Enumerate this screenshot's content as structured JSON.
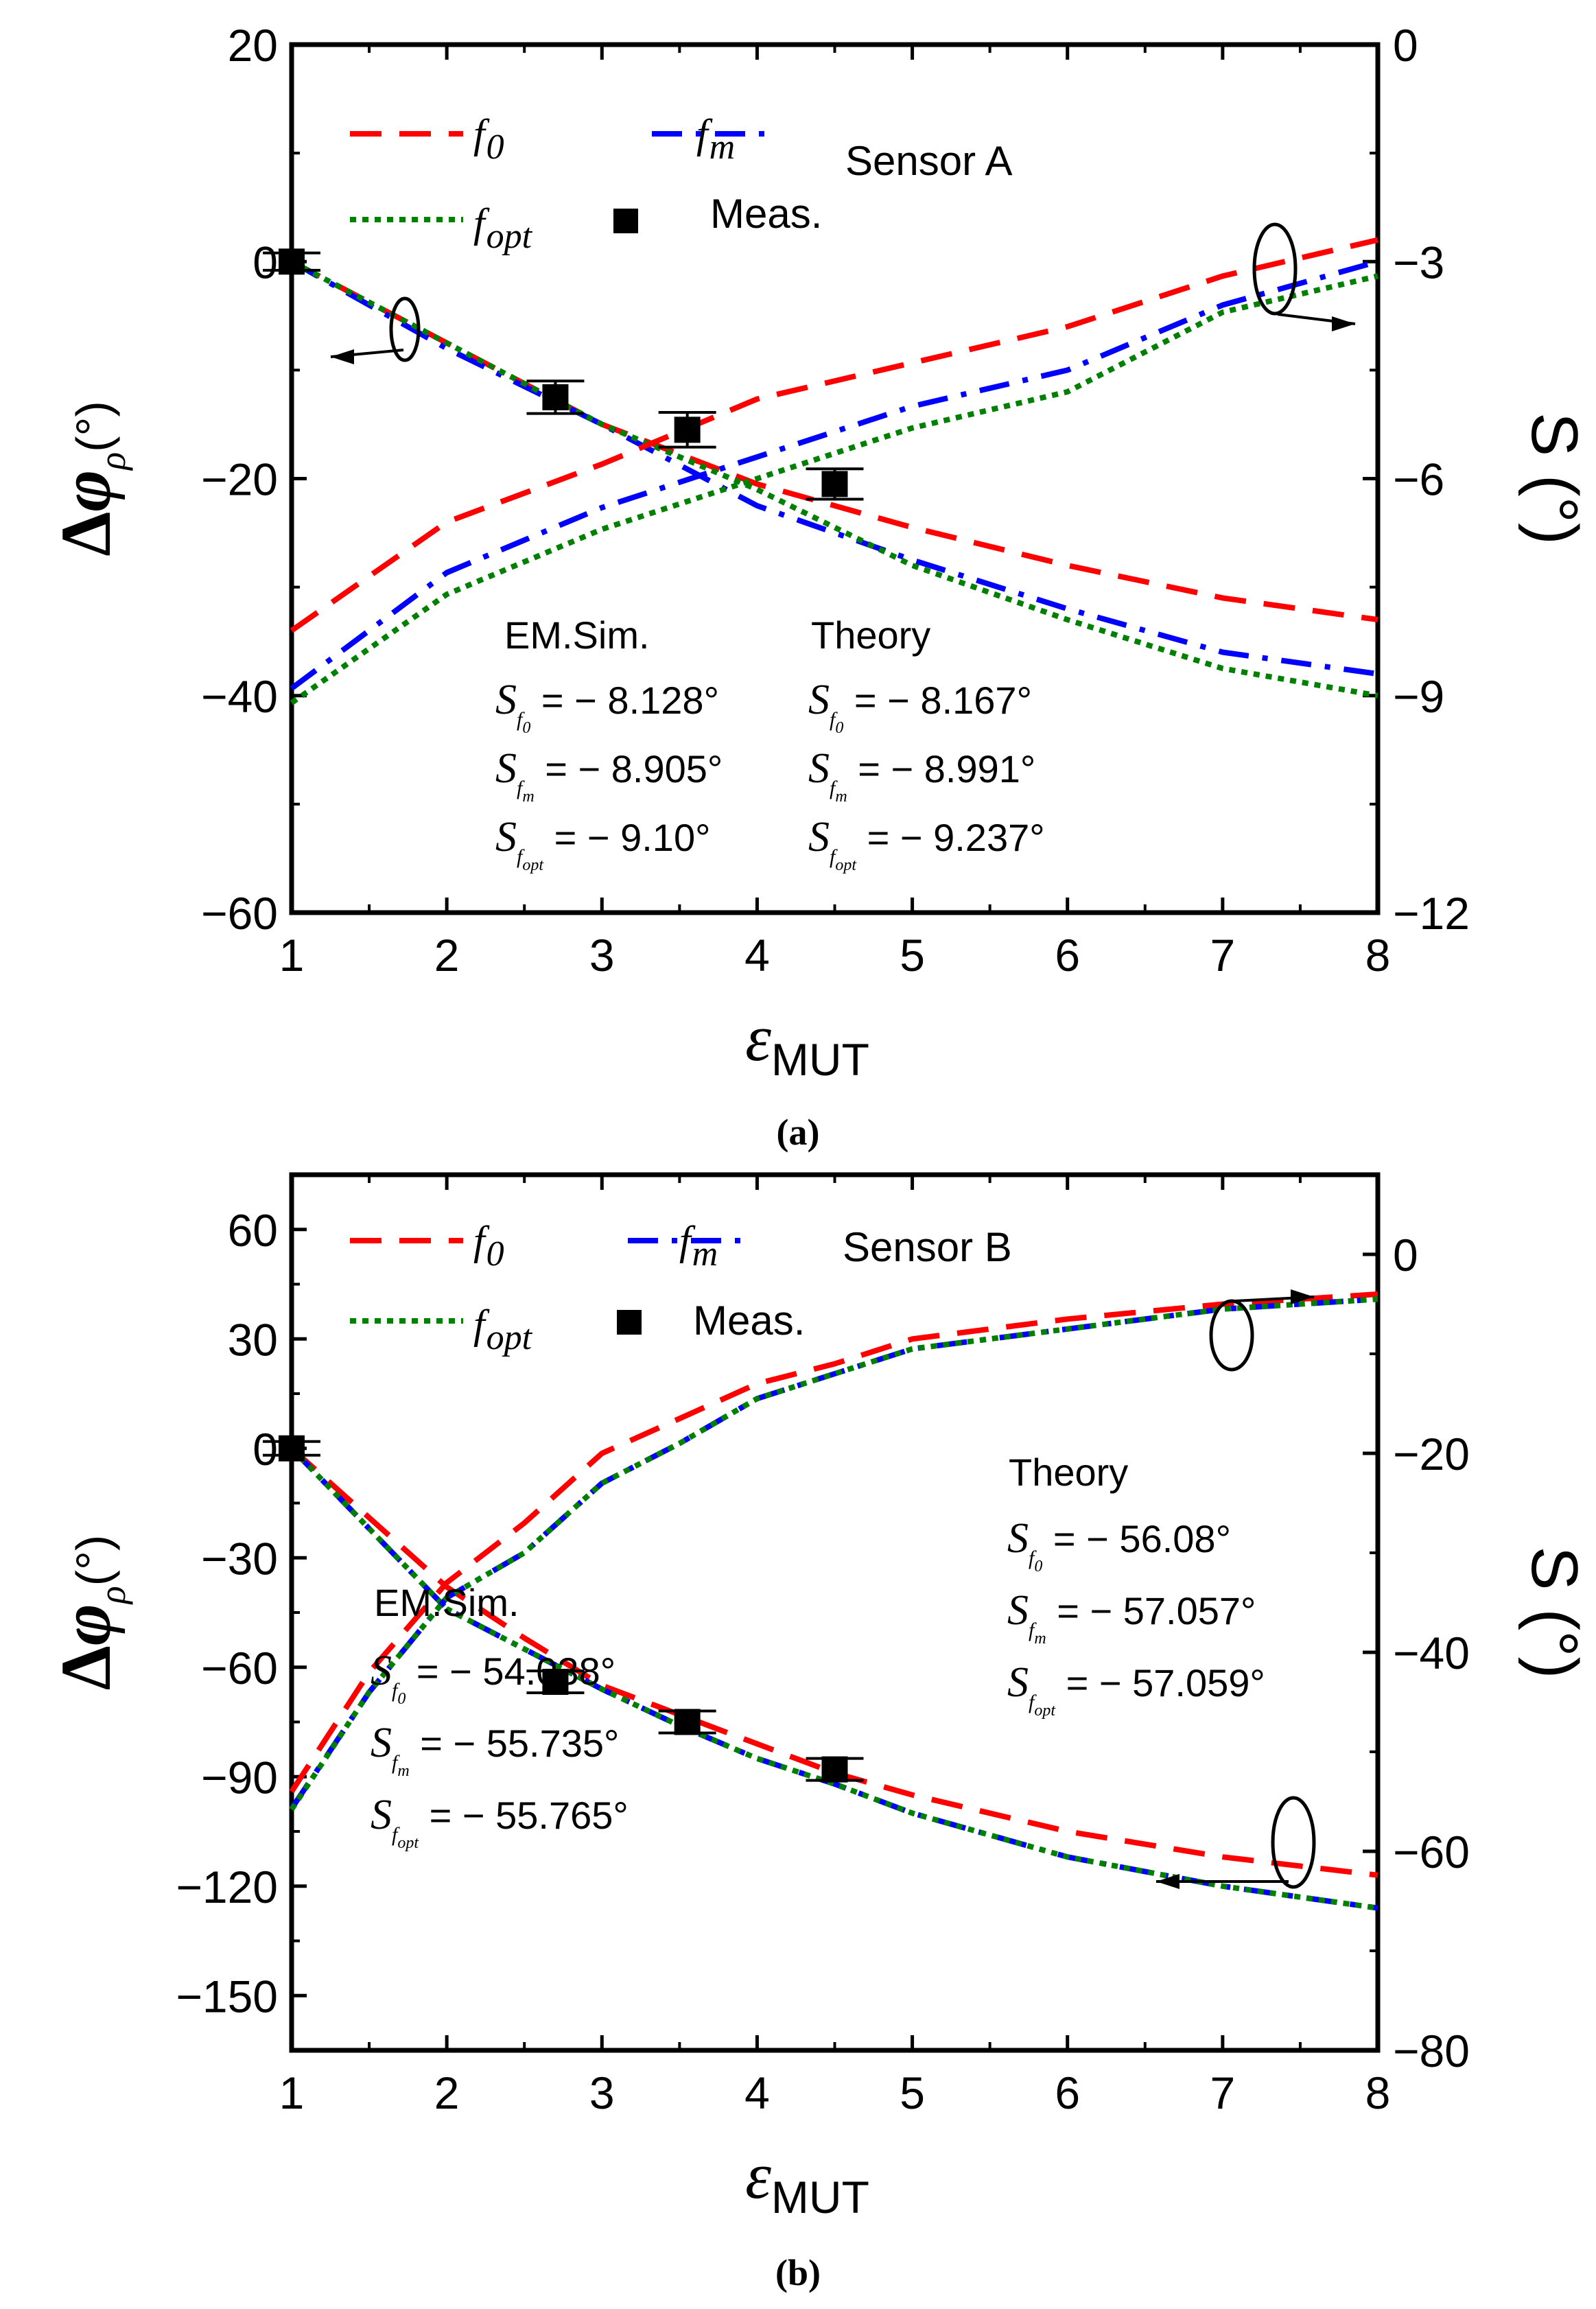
{
  "chart_data": [
    {
      "type": "line",
      "panel": "a",
      "caption": "(a)",
      "title": "Sensor A",
      "xlabel_main": "ε",
      "xlabel_sub": "MUT",
      "ylabel_left_main": "Δφ",
      "ylabel_left_sub": "ρ",
      "ylabel_left_unit": "(°)",
      "ylabel_right": "S (°)",
      "xlim": [
        1,
        8
      ],
      "ylim_left": [
        -60,
        20
      ],
      "ylim_right": [
        -12,
        0
      ],
      "xticks": [
        "1",
        "2",
        "3",
        "4",
        "5",
        "6",
        "7",
        "8"
      ],
      "yticks_left": [
        "20",
        "0",
        "−20",
        "−40",
        "−60"
      ],
      "yticks_right": [
        "0",
        "−3",
        "−6",
        "−9",
        "−12"
      ],
      "legend": [
        {
          "main": "f",
          "sub": "0",
          "color": "#ff0000",
          "style": "dash"
        },
        {
          "main": "f",
          "sub": "m",
          "color": "#0000ff",
          "style": "dashdot"
        },
        {
          "main": "f",
          "sub": "opt",
          "color": "#008000",
          "style": "dot"
        },
        {
          "label": "Meas.",
          "color": "#000000",
          "style": "marker"
        }
      ],
      "series": [
        {
          "name": "f0 Δφ",
          "axis": "left",
          "color": "#ff0000",
          "style": "dash",
          "x": [
            1,
            2,
            3,
            4,
            5,
            6,
            7,
            8
          ],
          "values": [
            0,
            -7.5,
            -15,
            -20.5,
            -24.5,
            -28,
            -31,
            -33
          ]
        },
        {
          "name": "fm Δφ",
          "axis": "left",
          "color": "#0000ff",
          "style": "dashdot",
          "x": [
            1,
            2,
            3,
            4,
            5,
            6,
            7,
            8
          ],
          "values": [
            0,
            -8,
            -15,
            -22.5,
            -27.5,
            -32,
            -36,
            -38
          ]
        },
        {
          "name": "fopt Δφ",
          "axis": "left",
          "color": "#008000",
          "style": "dot",
          "x": [
            1,
            2,
            3,
            4,
            5,
            6,
            7,
            8
          ],
          "values": [
            0,
            -7.5,
            -15,
            -21,
            -28,
            -33,
            -37.5,
            -40
          ]
        },
        {
          "name": "f0 S",
          "axis": "right",
          "color": "#ff0000",
          "style": "dash",
          "x": [
            1,
            2,
            3,
            4,
            5,
            6,
            7,
            8
          ],
          "values": [
            -8.1,
            -6.6,
            -5.8,
            -4.9,
            -4.4,
            -3.9,
            -3.2,
            -2.7
          ]
        },
        {
          "name": "fm S",
          "axis": "right",
          "color": "#0000ff",
          "style": "dashdot",
          "x": [
            1,
            2,
            3,
            4,
            5,
            6,
            7,
            8
          ],
          "values": [
            -8.9,
            -7.3,
            -6.4,
            -5.7,
            -5.0,
            -4.5,
            -3.6,
            -3.0
          ]
        },
        {
          "name": "fopt S",
          "axis": "right",
          "color": "#008000",
          "style": "dot",
          "x": [
            1,
            2,
            3,
            4,
            5,
            6,
            7,
            8
          ],
          "values": [
            -9.1,
            -7.6,
            -6.7,
            -6.0,
            -5.3,
            -4.8,
            -3.7,
            -3.2
          ]
        }
      ],
      "measured": {
        "x": [
          1,
          2.7,
          3.55,
          4.5
        ],
        "values": [
          0,
          -12.5,
          -15.5,
          -20.5
        ],
        "err": [
          0.8,
          1.5,
          1.6,
          1.4
        ]
      },
      "annotations": {
        "sim_header": "EM.Sim.",
        "theory_header": "Theory",
        "sim": [
          {
            "sub": "f0",
            "text": " = − 8.128°"
          },
          {
            "sub": "fm",
            "text": " = − 8.905°"
          },
          {
            "sub": "fopt",
            "text": " = − 9.10°"
          }
        ],
        "theory": [
          {
            "sub": "f0",
            "text": " = − 8.167°"
          },
          {
            "sub": "fm",
            "text": " = − 8.991°"
          },
          {
            "sub": "fopt",
            "text": " = − 9.237°"
          }
        ]
      }
    },
    {
      "type": "line",
      "panel": "b",
      "caption": "(b)",
      "title": "Sensor B",
      "xlabel_main": "ε",
      "xlabel_sub": "MUT",
      "ylabel_left_main": "Δφ",
      "ylabel_left_sub": "ρ",
      "ylabel_left_unit": "(°)",
      "ylabel_right": "S (°)",
      "xlim": [
        1,
        8
      ],
      "ylim_left": [
        -165,
        75
      ],
      "ylim_right": [
        -80,
        8
      ],
      "xticks": [
        "1",
        "2",
        "3",
        "4",
        "5",
        "6",
        "7",
        "8"
      ],
      "yticks_left": [
        "60",
        "30",
        "0",
        "−30",
        "−60",
        "−90",
        "−120",
        "−150"
      ],
      "yticks_right": [
        "0",
        "−20",
        "−40",
        "−60",
        "−80"
      ],
      "legend": [
        {
          "main": "f",
          "sub": "0",
          "color": "#ff0000",
          "style": "dash"
        },
        {
          "main": "f",
          "sub": "m",
          "color": "#0000ff",
          "style": "dashdot"
        },
        {
          "main": "f",
          "sub": "opt",
          "color": "#008000",
          "style": "dot"
        },
        {
          "label": "Meas.",
          "color": "#000000",
          "style": "marker"
        }
      ],
      "series": [
        {
          "name": "f0 Δφ",
          "axis": "left",
          "color": "#ff0000",
          "style": "dash",
          "x": [
            1,
            2,
            2.5,
            3,
            3.5,
            4,
            4.5,
            5,
            6,
            7,
            8
          ],
          "values": [
            0,
            -38,
            -52,
            -65,
            -73,
            -81,
            -89,
            -95,
            -105,
            -112,
            -117
          ]
        },
        {
          "name": "fm Δφ",
          "axis": "left",
          "color": "#0000ff",
          "style": "dashdot",
          "x": [
            1,
            2,
            2.5,
            3,
            3.5,
            4,
            4.5,
            5,
            6,
            7,
            8
          ],
          "values": [
            0,
            -44,
            -55,
            -66,
            -76,
            -85,
            -92,
            -100,
            -112,
            -120,
            -126
          ]
        },
        {
          "name": "fopt Δφ",
          "axis": "left",
          "color": "#008000",
          "style": "dot",
          "x": [
            1,
            2,
            2.5,
            3,
            3.5,
            4,
            4.5,
            5,
            6,
            7,
            8
          ],
          "values": [
            0,
            -44,
            -55,
            -66,
            -76,
            -85,
            -92,
            -100,
            -112,
            -120,
            -126
          ]
        },
        {
          "name": "f0 S",
          "axis": "right",
          "color": "#ff0000",
          "style": "dash",
          "x": [
            1,
            1.5,
            2,
            2.5,
            3,
            3.5,
            4,
            4.5,
            5,
            6,
            7,
            8
          ],
          "values": [
            -54,
            -42,
            -33,
            -27,
            -20,
            -16.5,
            -13,
            -11,
            -8.5,
            -6.5,
            -5,
            -4
          ]
        },
        {
          "name": "fm S",
          "axis": "right",
          "color": "#0000ff",
          "style": "dashdot",
          "x": [
            1,
            1.5,
            2,
            2.5,
            3,
            3.5,
            4,
            4.5,
            5,
            6,
            7,
            8
          ],
          "values": [
            -55.7,
            -44,
            -34.5,
            -30,
            -23,
            -19,
            -14.5,
            -12,
            -9.5,
            -7.5,
            -5.5,
            -4.5
          ]
        },
        {
          "name": "fopt S",
          "axis": "right",
          "color": "#008000",
          "style": "dot",
          "x": [
            1,
            1.5,
            2,
            2.5,
            3,
            3.5,
            4,
            4.5,
            5,
            6,
            7,
            8
          ],
          "values": [
            -55.8,
            -44,
            -34.5,
            -30,
            -23,
            -19,
            -14.5,
            -12,
            -9.5,
            -7.5,
            -5.5,
            -4.5
          ]
        }
      ],
      "measured": {
        "x": [
          1,
          2.7,
          3.55,
          4.5
        ],
        "values": [
          0,
          -64,
          -75,
          -88
        ],
        "err": [
          1.5,
          3,
          3,
          3
        ]
      },
      "annotations": {
        "sim_header": "EM.Sim.",
        "theory_header": "Theory",
        "sim": [
          {
            "sub": "f0",
            "text": " = − 54.038°"
          },
          {
            "sub": "fm",
            "text": " = − 55.735°"
          },
          {
            "sub": "fopt",
            "text": " = −  55.765°"
          }
        ],
        "theory": [
          {
            "sub": "f0",
            "text": " = − 56.08°"
          },
          {
            "sub": "fm",
            "text": " = − 57.057°"
          },
          {
            "sub": "fopt",
            "text": " = − 57.059°"
          }
        ]
      }
    }
  ]
}
